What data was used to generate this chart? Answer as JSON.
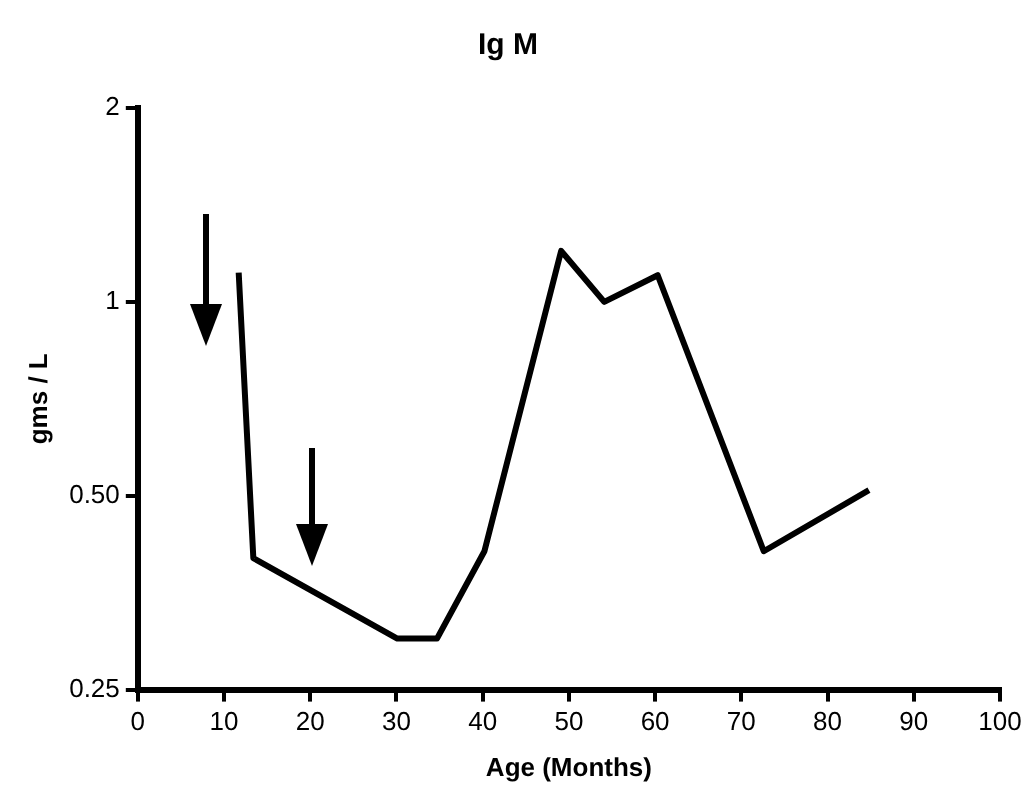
{
  "chart_data": {
    "type": "line",
    "title": "Ig M",
    "xlabel": "Age (Months)",
    "ylabel": "gms / L",
    "x": [
      11.7,
      13.4,
      30.1,
      34.7,
      40.2,
      49.1,
      54.1,
      60.3,
      72.6,
      84.8
    ],
    "series": [
      {
        "color": "#000000",
        "values": [
          1.11,
          0.4,
          0.3,
          0.3,
          0.41,
          1.2,
          1.0,
          1.1,
          0.41,
          0.51
        ]
      }
    ],
    "xlim": [
      0,
      100
    ],
    "xticks": [
      0,
      10,
      20,
      30,
      40,
      50,
      60,
      70,
      80,
      90,
      100
    ],
    "ylim": [
      0.25,
      2
    ],
    "yticks": [
      0.25,
      {
        "value": 0.5,
        "label": "0.50"
      },
      1,
      2
    ],
    "log": true,
    "grid": false,
    "legend": false,
    "marker": "none",
    "line_style": "solid"
  }
}
